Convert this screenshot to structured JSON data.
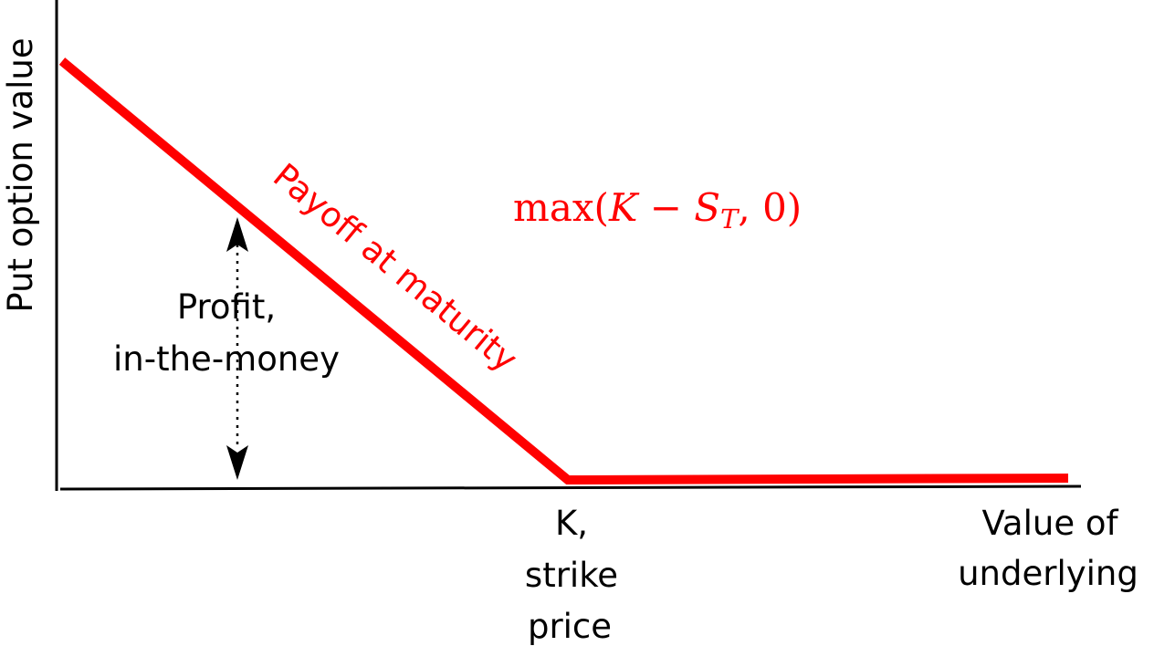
{
  "axes": {
    "y_label": "Put option value",
    "x_label_line1": "Value of",
    "x_label_line2": "underlying"
  },
  "strike": {
    "line1": "K,",
    "line2": "strike",
    "line3": "price"
  },
  "payoff": {
    "label": "Payoff at maturity",
    "formula_fn": "max(",
    "formula_K": "K",
    "formula_minus": " − ",
    "formula_S": "S",
    "formula_T": "T",
    "formula_tail": ", 0)",
    "color": "#ff0000"
  },
  "profit": {
    "line1": "Profit,",
    "line2": "in-the-money"
  }
}
